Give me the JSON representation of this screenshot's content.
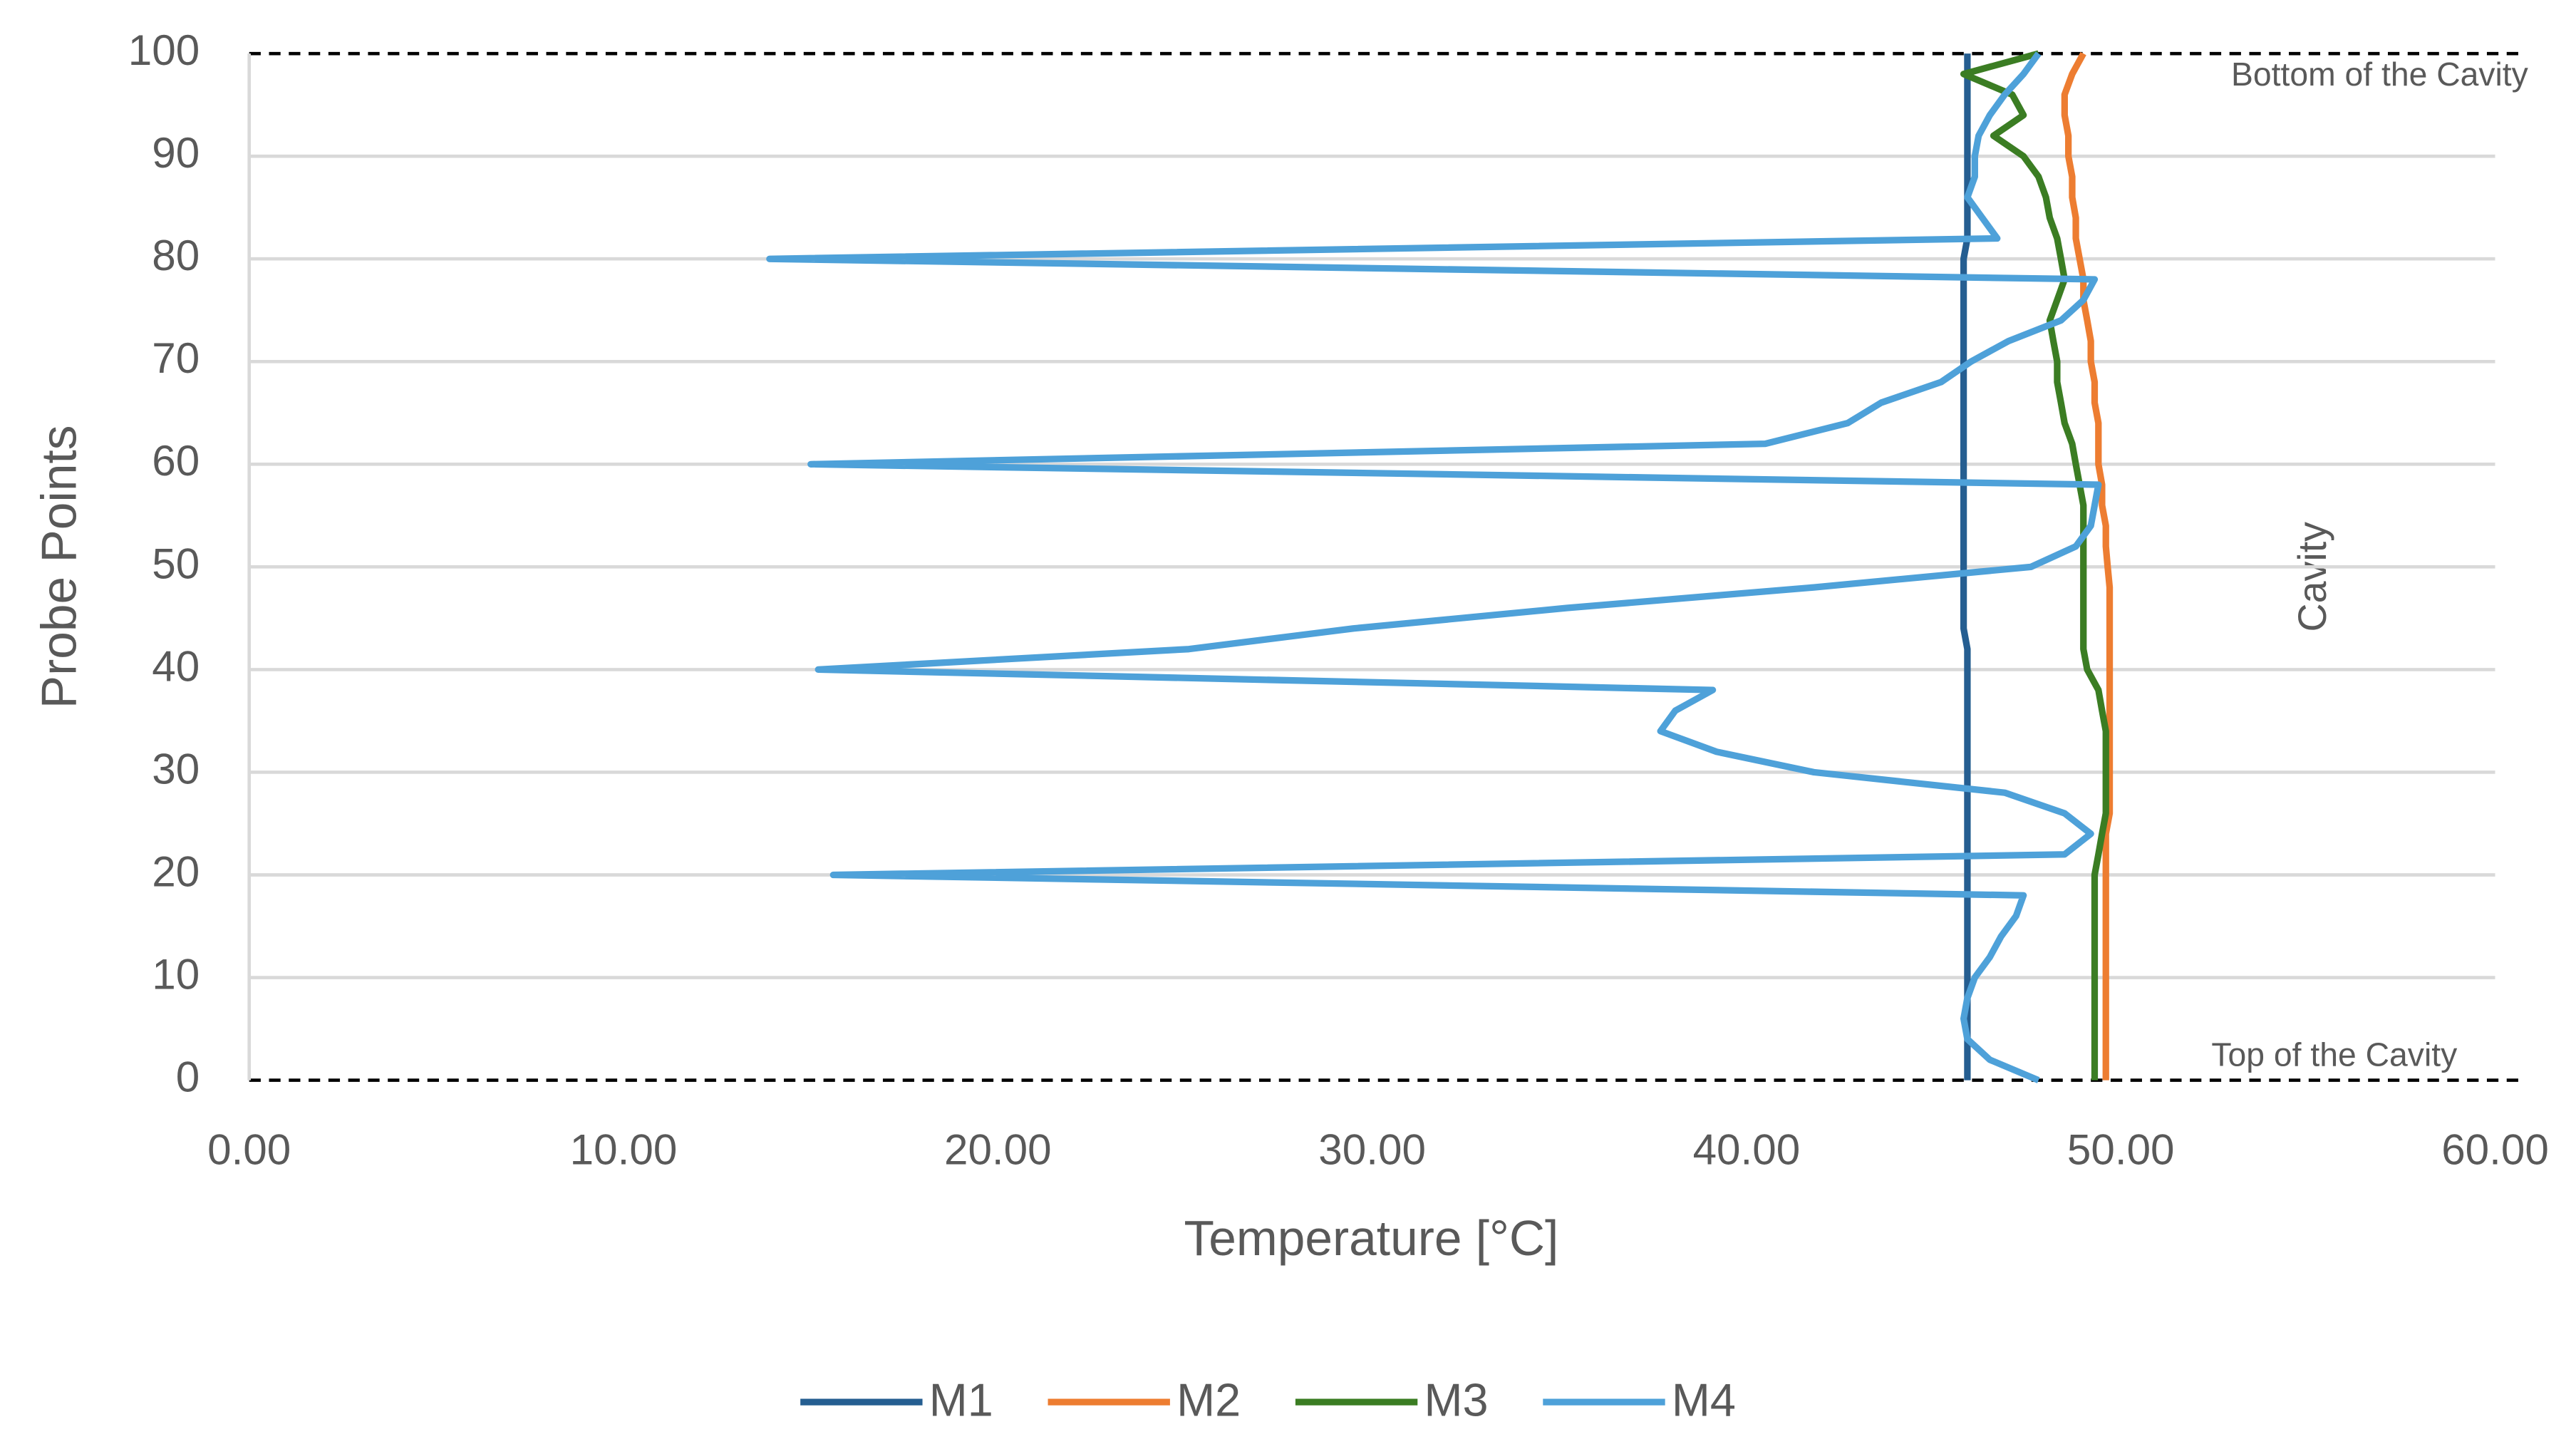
{
  "chart_data": {
    "type": "line",
    "x_label": "Temperature [°C]",
    "y_label": "Probe Points",
    "annotations": [
      "Bottom of the Cavity",
      "Cavity",
      "Top of the Cavity"
    ],
    "y": [
      0,
      2,
      4,
      6,
      8,
      10,
      12,
      14,
      16,
      18,
      20,
      22,
      24,
      26,
      28,
      30,
      32,
      34,
      36,
      38,
      40,
      42,
      44,
      46,
      48,
      50,
      52,
      54,
      56,
      58,
      60,
      62,
      64,
      66,
      68,
      70,
      72,
      74,
      76,
      78,
      80,
      82,
      84,
      86,
      88,
      90,
      92,
      94,
      96,
      98,
      100
    ],
    "series": [
      {
        "name": "M1",
        "color": "#255e91",
        "values": [
          45.9,
          45.9,
          45.9,
          45.9,
          45.9,
          45.9,
          45.9,
          45.9,
          45.9,
          45.9,
          45.9,
          45.9,
          45.9,
          45.9,
          45.9,
          45.9,
          45.9,
          45.9,
          45.9,
          45.9,
          45.9,
          45.9,
          45.8,
          45.8,
          45.8,
          45.8,
          45.8,
          45.8,
          45.8,
          45.8,
          45.8,
          45.8,
          45.8,
          45.8,
          45.8,
          45.8,
          45.8,
          45.8,
          45.8,
          45.8,
          45.8,
          45.9,
          45.9,
          45.9,
          45.9,
          45.9,
          45.9,
          45.9,
          45.9,
          45.9,
          45.9
        ]
      },
      {
        "name": "M2",
        "color": "#ed7d31",
        "values": [
          49.6,
          49.6,
          49.6,
          49.6,
          49.6,
          49.6,
          49.6,
          49.6,
          49.6,
          49.6,
          49.6,
          49.6,
          49.6,
          49.7,
          49.7,
          49.7,
          49.7,
          49.7,
          49.7,
          49.7,
          49.7,
          49.7,
          49.7,
          49.7,
          49.7,
          49.65,
          49.6,
          49.6,
          49.5,
          49.5,
          49.4,
          49.4,
          49.4,
          49.3,
          49.3,
          49.2,
          49.2,
          49.1,
          49.0,
          49.0,
          48.9,
          48.8,
          48.8,
          48.7,
          48.7,
          48.6,
          48.6,
          48.5,
          48.5,
          48.7,
          49.0
        ]
      },
      {
        "name": "M3",
        "color": "#3b7d23",
        "values": [
          49.3,
          49.3,
          49.3,
          49.3,
          49.3,
          49.3,
          49.3,
          49.3,
          49.3,
          49.3,
          49.3,
          49.4,
          49.5,
          49.6,
          49.6,
          49.6,
          49.6,
          49.6,
          49.5,
          49.4,
          49.1,
          49.0,
          49.0,
          49.0,
          49.0,
          49.0,
          49.0,
          49.0,
          49.0,
          48.9,
          48.8,
          48.7,
          48.5,
          48.4,
          48.3,
          48.3,
          48.2,
          48.1,
          48.3,
          48.5,
          48.4,
          48.3,
          48.1,
          48.0,
          47.8,
          47.4,
          46.6,
          47.4,
          47.1,
          45.8,
          47.8
        ]
      },
      {
        "name": "M4",
        "color": "#4ea1d9",
        "values": [
          47.8,
          46.5,
          45.9,
          45.8,
          45.9,
          46.1,
          46.5,
          46.8,
          47.2,
          47.4,
          15.6,
          48.5,
          49.2,
          48.5,
          46.9,
          41.8,
          39.2,
          37.7,
          38.1,
          39.1,
          15.2,
          25.1,
          29.5,
          35.2,
          41.8,
          47.6,
          48.8,
          49.2,
          49.3,
          49.4,
          15.0,
          40.5,
          42.7,
          43.6,
          45.2,
          46.0,
          47.0,
          48.4,
          49.0,
          49.3,
          13.9,
          46.7,
          46.3,
          45.9,
          46.1,
          46.1,
          46.2,
          46.5,
          46.9,
          47.4,
          47.8
        ]
      }
    ],
    "xlim": [
      0,
      60
    ],
    "xticks": [
      {
        "value": 0,
        "label": "0.00"
      },
      {
        "value": 10,
        "label": "10.00"
      },
      {
        "value": 20,
        "label": "20.00"
      },
      {
        "value": 30,
        "label": "30.00"
      },
      {
        "value": 40,
        "label": "40.00"
      },
      {
        "value": 50,
        "label": "50.00"
      },
      {
        "value": 60,
        "label": "60.00"
      }
    ],
    "ylim": [
      0,
      100
    ],
    "yticks": [
      0,
      10,
      20,
      30,
      40,
      50,
      60,
      70,
      80,
      90,
      100
    ],
    "grid": true,
    "legend": "bottom"
  }
}
